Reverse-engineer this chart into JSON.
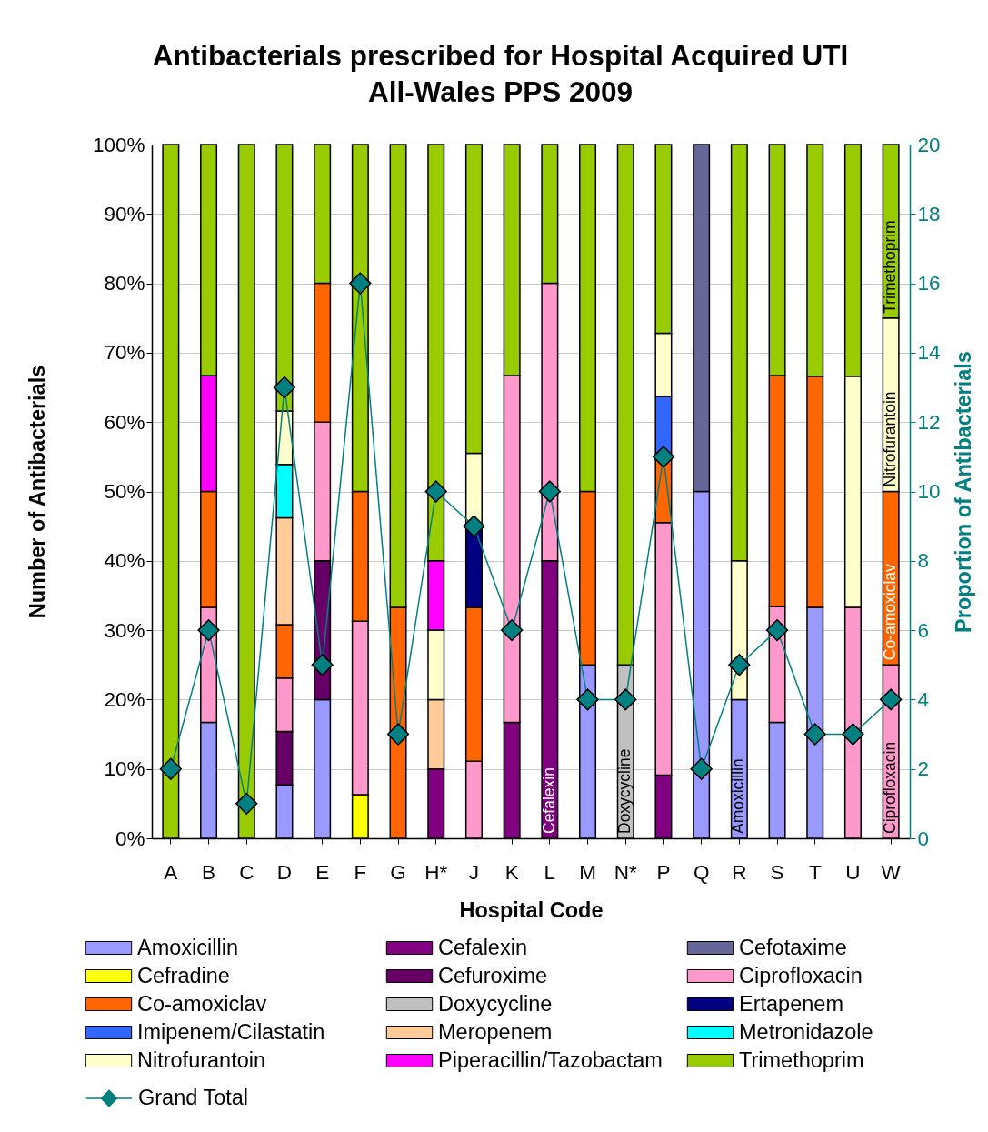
{
  "chart_data": {
    "type": "bar",
    "title": "Antibacterials prescribed for Hospital Acquired UTI\nAll-Wales PPS 2009",
    "xlabel": "Hospital Code",
    "ylabel": "Number of Antibacterials",
    "y2label": "Proportion of Antibacterials",
    "categories": [
      "A",
      "B",
      "C",
      "D",
      "E",
      "F",
      "G",
      "H*",
      "J",
      "K",
      "L",
      "M",
      "N*",
      "P",
      "Q",
      "R",
      "S",
      "T",
      "U",
      "W"
    ],
    "stacked": true,
    "series": [
      {
        "name": "Amoxicillin",
        "color": "#9999ff",
        "values": [
          null,
          16.7,
          null,
          7.7,
          20,
          null,
          null,
          null,
          null,
          null,
          null,
          25,
          null,
          null,
          50,
          20,
          16.7,
          33.3,
          null,
          null
        ]
      },
      {
        "name": "Cefalexin",
        "color": "#800080",
        "values": [
          null,
          null,
          null,
          null,
          null,
          null,
          null,
          10,
          null,
          16.7,
          40,
          null,
          null,
          9.1,
          null,
          null,
          null,
          null,
          null,
          null
        ]
      },
      {
        "name": "Cefotaxime",
        "color": "#666699",
        "values": [
          null,
          null,
          null,
          null,
          null,
          null,
          null,
          null,
          null,
          null,
          null,
          null,
          null,
          null,
          50,
          null,
          null,
          null,
          null,
          null
        ]
      },
      {
        "name": "Cefradine",
        "color": "#ffff00",
        "values": [
          null,
          null,
          null,
          null,
          null,
          6.3,
          null,
          null,
          null,
          null,
          null,
          null,
          null,
          null,
          null,
          null,
          null,
          null,
          null,
          null
        ]
      },
      {
        "name": "Cefuroxime",
        "color": "#660066",
        "values": [
          null,
          null,
          null,
          7.7,
          20,
          null,
          null,
          null,
          null,
          null,
          null,
          null,
          null,
          null,
          null,
          null,
          null,
          null,
          null,
          null
        ]
      },
      {
        "name": "Ciprofloxacin",
        "color": "#ff99cc",
        "values": [
          null,
          16.6,
          null,
          7.7,
          20,
          25,
          null,
          null,
          11.1,
          50,
          40,
          null,
          null,
          36.4,
          null,
          null,
          16.7,
          null,
          33.3,
          25
        ]
      },
      {
        "name": "Co-amoxiclav",
        "color": "#ff6600",
        "values": [
          null,
          16.7,
          null,
          7.7,
          20,
          18.7,
          33.3,
          null,
          22.2,
          null,
          null,
          25,
          null,
          9.1,
          null,
          null,
          33.3,
          33.3,
          null,
          25
        ]
      },
      {
        "name": "Doxycycline",
        "color": "#c0c0c0",
        "values": [
          null,
          null,
          null,
          null,
          null,
          null,
          null,
          null,
          null,
          null,
          null,
          null,
          25,
          null,
          null,
          null,
          null,
          null,
          null,
          null
        ]
      },
      {
        "name": "Ertapenem",
        "color": "#000080",
        "values": [
          null,
          null,
          null,
          null,
          null,
          null,
          null,
          null,
          11.1,
          null,
          null,
          null,
          null,
          null,
          null,
          null,
          null,
          null,
          null,
          null
        ]
      },
      {
        "name": "Imipenem/Cilastatin",
        "color": "#3366ff",
        "values": [
          null,
          null,
          null,
          null,
          null,
          null,
          null,
          null,
          null,
          null,
          null,
          null,
          null,
          9.1,
          null,
          null,
          null,
          null,
          null,
          null
        ]
      },
      {
        "name": "Meropenem",
        "color": "#ffcc99",
        "values": [
          null,
          null,
          null,
          15.4,
          null,
          null,
          null,
          10,
          null,
          null,
          null,
          null,
          null,
          null,
          null,
          null,
          null,
          null,
          null,
          null
        ]
      },
      {
        "name": "Metronidazole",
        "color": "#00ffff",
        "values": [
          null,
          null,
          null,
          7.7,
          null,
          null,
          null,
          null,
          null,
          null,
          null,
          null,
          null,
          null,
          null,
          null,
          null,
          null,
          null,
          null
        ]
      },
      {
        "name": "Nitrofurantoin",
        "color": "#ffffcc",
        "values": [
          null,
          null,
          null,
          7.7,
          null,
          null,
          null,
          10,
          11.1,
          null,
          null,
          null,
          null,
          9.1,
          null,
          20,
          null,
          null,
          33.3,
          25
        ]
      },
      {
        "name": "Piperacillin/Tazobactam",
        "color": "#ff00ff",
        "values": [
          null,
          16.7,
          null,
          null,
          null,
          null,
          null,
          10,
          null,
          null,
          null,
          null,
          null,
          null,
          null,
          null,
          null,
          null,
          null,
          null
        ]
      },
      {
        "name": "Trimethoprim",
        "color": "#99cc00",
        "values": [
          100,
          33.3,
          100,
          38.4,
          20,
          50,
          66.7,
          60,
          44.5,
          33.3,
          20,
          50,
          75,
          27.2,
          null,
          60,
          33.3,
          33.4,
          33.4,
          25
        ]
      },
      {
        "name": "Grand Total",
        "type": "line",
        "axis": "y2",
        "color": "#008080",
        "values": [
          2,
          6,
          1,
          13,
          5,
          16,
          3,
          10,
          9,
          6,
          10,
          4,
          4,
          11,
          2,
          5,
          6,
          3,
          3,
          4
        ]
      }
    ],
    "ylim": [
      0,
      100
    ],
    "yticks": [
      {
        "value": 0,
        "label": "0%"
      },
      {
        "value": 10,
        "label": "10%"
      },
      {
        "value": 20,
        "label": "20%"
      },
      {
        "value": 30,
        "label": "30%"
      },
      {
        "value": 40,
        "label": "40%"
      },
      {
        "value": 50,
        "label": "50%"
      },
      {
        "value": 60,
        "label": "60%"
      },
      {
        "value": 70,
        "label": "70%"
      },
      {
        "value": 80,
        "label": "80%"
      },
      {
        "value": 90,
        "label": "90%"
      },
      {
        "value": 100,
        "label": "100%"
      }
    ],
    "y2lim": [
      0,
      20
    ],
    "y2ticks": [
      0,
      2,
      4,
      6,
      8,
      10,
      12,
      14,
      16,
      18,
      20
    ],
    "grid": "y",
    "legend": "bottom",
    "marker": "diamond",
    "annotations": [
      {
        "text": "Cefalexin",
        "x": "L",
        "y": 0
      },
      {
        "text": "Doxycycline",
        "x": "N*",
        "y": 0
      },
      {
        "text": "Amoxicillin",
        "x": "R",
        "y": 0
      },
      {
        "text": "Ciprofloxacin",
        "x": "W",
        "y": 0
      },
      {
        "text": "Co-amoxiclav",
        "x": "W",
        "y": 25
      },
      {
        "text": "Nitrofurantoin",
        "x": "W",
        "y": 50
      },
      {
        "text": "Trimethoprim",
        "x": "W",
        "y": 75
      }
    ]
  }
}
